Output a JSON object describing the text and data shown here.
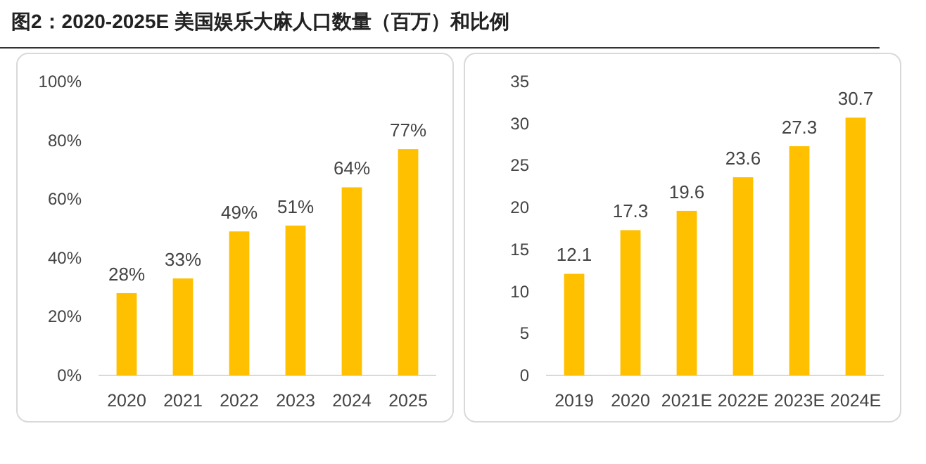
{
  "chart_data": [
    {
      "type": "bar",
      "title": "图2：2020-2025E 美国娱乐大麻人口数量（百万）和比例",
      "categories": [
        "2020",
        "2021",
        "2022",
        "2023",
        "2024",
        "2025"
      ],
      "values": [
        28,
        33,
        49,
        51,
        64,
        77
      ],
      "value_labels": [
        "28%",
        "33%",
        "49%",
        "51%",
        "64%",
        "77%"
      ],
      "color": "#ffc000",
      "ylim": [
        0,
        100
      ],
      "yticks": [
        {
          "value": 0,
          "label": "0%"
        },
        {
          "value": 20,
          "label": "20%"
        },
        {
          "value": 40,
          "label": "40%"
        },
        {
          "value": 60,
          "label": "60%"
        },
        {
          "value": 80,
          "label": "80%"
        },
        {
          "value": 100,
          "label": "100%"
        }
      ]
    },
    {
      "type": "bar",
      "categories": [
        "2019",
        "2020",
        "2021E",
        "2022E",
        "2023E",
        "2024E"
      ],
      "values": [
        12.1,
        17.3,
        19.6,
        23.6,
        27.3,
        30.7
      ],
      "data_labels": true,
      "color": "#ffc000",
      "ylim": [
        0,
        35
      ],
      "yticks": [
        0,
        5,
        10,
        15,
        20,
        25,
        30,
        35
      ]
    }
  ]
}
